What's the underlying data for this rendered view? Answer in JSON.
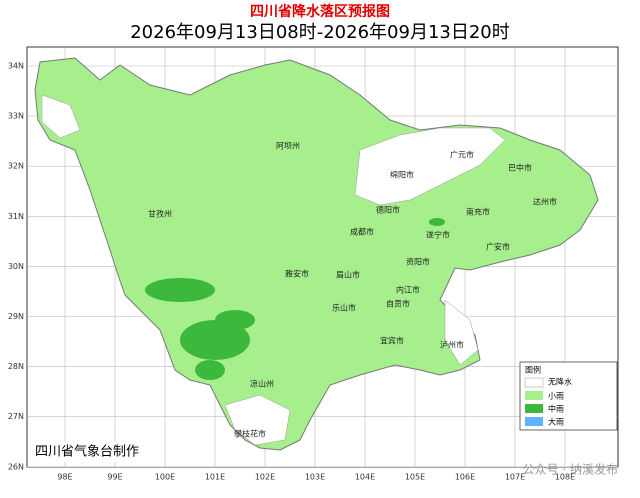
{
  "header": {
    "title": "四川省降水落区预报图",
    "period": "2026年09月13日08时-2026年09月13日20时"
  },
  "latitude_labels": [
    "34N",
    "33N",
    "32N",
    "31N",
    "30N",
    "29N",
    "28N",
    "27N",
    "26N"
  ],
  "longitude_labels": [
    "98E",
    "99E",
    "100E",
    "101E",
    "102E",
    "103E",
    "104E",
    "105E",
    "106E",
    "107E",
    "108E"
  ],
  "cities": [
    "广元市",
    "巴中市",
    "绵阳市",
    "阿坝州",
    "甘孜州",
    "德阳市",
    "南充市",
    "达州市",
    "成都市",
    "遂宁市",
    "广安市",
    "雅安市",
    "眉山市",
    "资阳市",
    "内江市",
    "乐山市",
    "自贡市",
    "宜宾市",
    "泸州市",
    "凉山州",
    "攀枝花市"
  ],
  "legend": {
    "title": "图例",
    "items": [
      "无降水",
      "小雨",
      "中雨",
      "大雨"
    ]
  },
  "footer": "四川省气象台制作",
  "watermark": "公众号 · 纳溪发布"
}
